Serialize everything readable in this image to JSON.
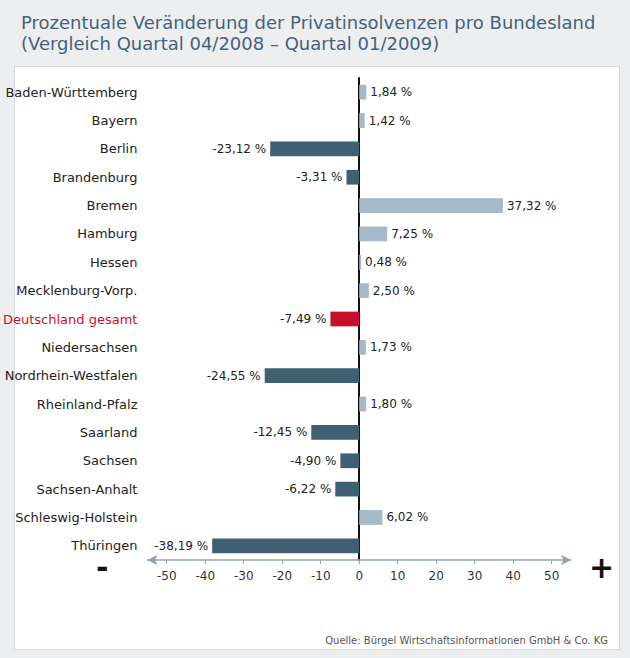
{
  "chart_data": {
    "type": "bar",
    "orientation": "horizontal",
    "title": "Prozentuale Veränderung der Privatinsolvenzen pro Bundesland",
    "subtitle": "(Vergleich Quartal 04/2008 – Quartal 01/2009)",
    "categories": [
      "Baden-Württemberg",
      "Bayern",
      "Berlin",
      "Brandenburg",
      "Bremen",
      "Hamburg",
      "Hessen",
      "Mecklenburg-Vorp.",
      "Deutschland gesamt",
      "Niedersachsen",
      "Nordrhein-Westfalen",
      "Rheinland-Pfalz",
      "Saarland",
      "Sachsen",
      "Sachsen-Anhalt",
      "Schleswig-Holstein",
      "Thüringen"
    ],
    "values": [
      1.84,
      1.42,
      -23.12,
      -3.31,
      37.32,
      7.25,
      0.48,
      2.5,
      -7.49,
      1.73,
      -24.55,
      1.8,
      -12.45,
      -4.9,
      -6.22,
      6.02,
      -38.19
    ],
    "value_labels": [
      "1,84 %",
      "1,42 %",
      "-23,12 %",
      "-3,31 %",
      "37,32 %",
      "7,25 %",
      "0,48 %",
      "2,50 %",
      "-7,49 %",
      "1,73 %",
      "-24,55 %",
      "1,80 %",
      "-12,45 %",
      "-4,90 %",
      "-6,22 %",
      "6,02 %",
      "-38,19 %"
    ],
    "colors": [
      "#a6b9c8",
      "#a6b9c8",
      "#3f5f72",
      "#3f5f72",
      "#a6b9c8",
      "#a6b9c8",
      "#a6b9c8",
      "#a6b9c8",
      "#c8102e",
      "#a6b9c8",
      "#3f5f72",
      "#a6b9c8",
      "#3f5f72",
      "#3f5f72",
      "#3f5f72",
      "#a6b9c8",
      "#3f5f72"
    ],
    "data_labels": true,
    "grid": false,
    "xlim": [
      -55,
      55
    ],
    "xticks": [
      -50,
      -40,
      -30,
      -20,
      -10,
      0,
      10,
      20,
      30,
      40,
      50
    ],
    "annotations": {
      "left": "-",
      "right": "+",
      "source": "Quelle: Bürgel Wirtschaftsinformationen GmbH & Co. KG"
    }
  }
}
